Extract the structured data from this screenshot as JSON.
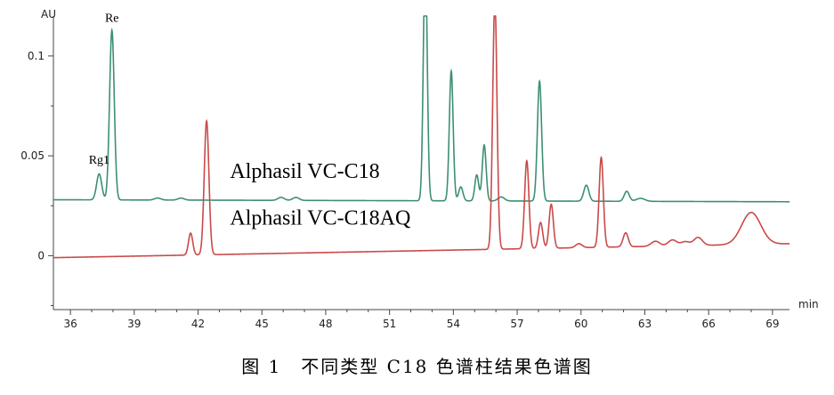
{
  "caption": "图 1　不同类型 C18 色谱柱结果色谱图",
  "chart_data": {
    "type": "line",
    "title": "",
    "xlabel": "min",
    "ylabel": "AU",
    "xlim": [
      35.2,
      69.8
    ],
    "ylim": [
      -0.027,
      0.12
    ],
    "x_ticks": [
      36,
      39,
      42,
      45,
      48,
      51,
      54,
      57,
      60,
      63,
      66,
      69
    ],
    "x_tick_labels": [
      "36",
      "39",
      "42",
      "45",
      "48",
      "51",
      "54",
      "57",
      "60",
      "63",
      "66",
      "69"
    ],
    "y_ticks": [
      0,
      0.05,
      0.1
    ],
    "y_tick_labels": [
      "0",
      "0.05",
      "0.1"
    ],
    "grid": false,
    "legend": "none",
    "annotations": [
      {
        "text": "Re",
        "x": 37.95,
        "y": 0.117
      },
      {
        "text": "Rg1",
        "x": 37.35,
        "y": 0.046
      }
    ],
    "series": [
      {
        "name": "Alphasil VC-C18",
        "color": "#3d8f74",
        "label_x": 43.5,
        "label_y": 0.039,
        "baseline_start": 0.028,
        "baseline_end": 0.027,
        "peaks": [
          {
            "x": 37.35,
            "height": 0.013,
            "width": 0.12
          },
          {
            "x": 37.95,
            "height": 0.085,
            "width": 0.11
          },
          {
            "x": 40.1,
            "height": 0.001,
            "width": 0.15
          },
          {
            "x": 41.2,
            "height": 0.001,
            "width": 0.15
          },
          {
            "x": 45.9,
            "height": 0.0015,
            "width": 0.15
          },
          {
            "x": 46.6,
            "height": 0.0015,
            "width": 0.15
          },
          {
            "x": 52.68,
            "height": 0.125,
            "width": 0.09
          },
          {
            "x": 53.9,
            "height": 0.065,
            "width": 0.09
          },
          {
            "x": 54.35,
            "height": 0.007,
            "width": 0.1
          },
          {
            "x": 55.1,
            "height": 0.013,
            "width": 0.09
          },
          {
            "x": 55.45,
            "height": 0.028,
            "width": 0.09
          },
          {
            "x": 56.25,
            "height": 0.002,
            "width": 0.15
          },
          {
            "x": 58.05,
            "height": 0.06,
            "width": 0.1
          },
          {
            "x": 60.25,
            "height": 0.008,
            "width": 0.12
          },
          {
            "x": 62.15,
            "height": 0.005,
            "width": 0.12
          },
          {
            "x": 62.8,
            "height": 0.0015,
            "width": 0.2
          }
        ]
      },
      {
        "name": "Alphasil VC-C18AQ",
        "color": "#c94a4a",
        "label_x": 43.5,
        "label_y": 0.0155,
        "baseline_start": -0.001,
        "baseline_end": 0.006,
        "peaks": [
          {
            "x": 41.65,
            "height": 0.011,
            "width": 0.1
          },
          {
            "x": 42.4,
            "height": 0.067,
            "width": 0.11
          },
          {
            "x": 55.95,
            "height": 0.125,
            "width": 0.1
          },
          {
            "x": 57.45,
            "height": 0.044,
            "width": 0.1
          },
          {
            "x": 58.1,
            "height": 0.013,
            "width": 0.1
          },
          {
            "x": 58.6,
            "height": 0.022,
            "width": 0.1
          },
          {
            "x": 59.9,
            "height": 0.002,
            "width": 0.15
          },
          {
            "x": 60.95,
            "height": 0.045,
            "width": 0.1
          },
          {
            "x": 62.1,
            "height": 0.007,
            "width": 0.12
          },
          {
            "x": 63.5,
            "height": 0.0025,
            "width": 0.2
          },
          {
            "x": 64.3,
            "height": 0.003,
            "width": 0.2
          },
          {
            "x": 64.9,
            "height": 0.002,
            "width": 0.2
          },
          {
            "x": 65.5,
            "height": 0.004,
            "width": 0.2
          },
          {
            "x": 68.0,
            "height": 0.016,
            "width": 0.45
          }
        ]
      }
    ]
  }
}
